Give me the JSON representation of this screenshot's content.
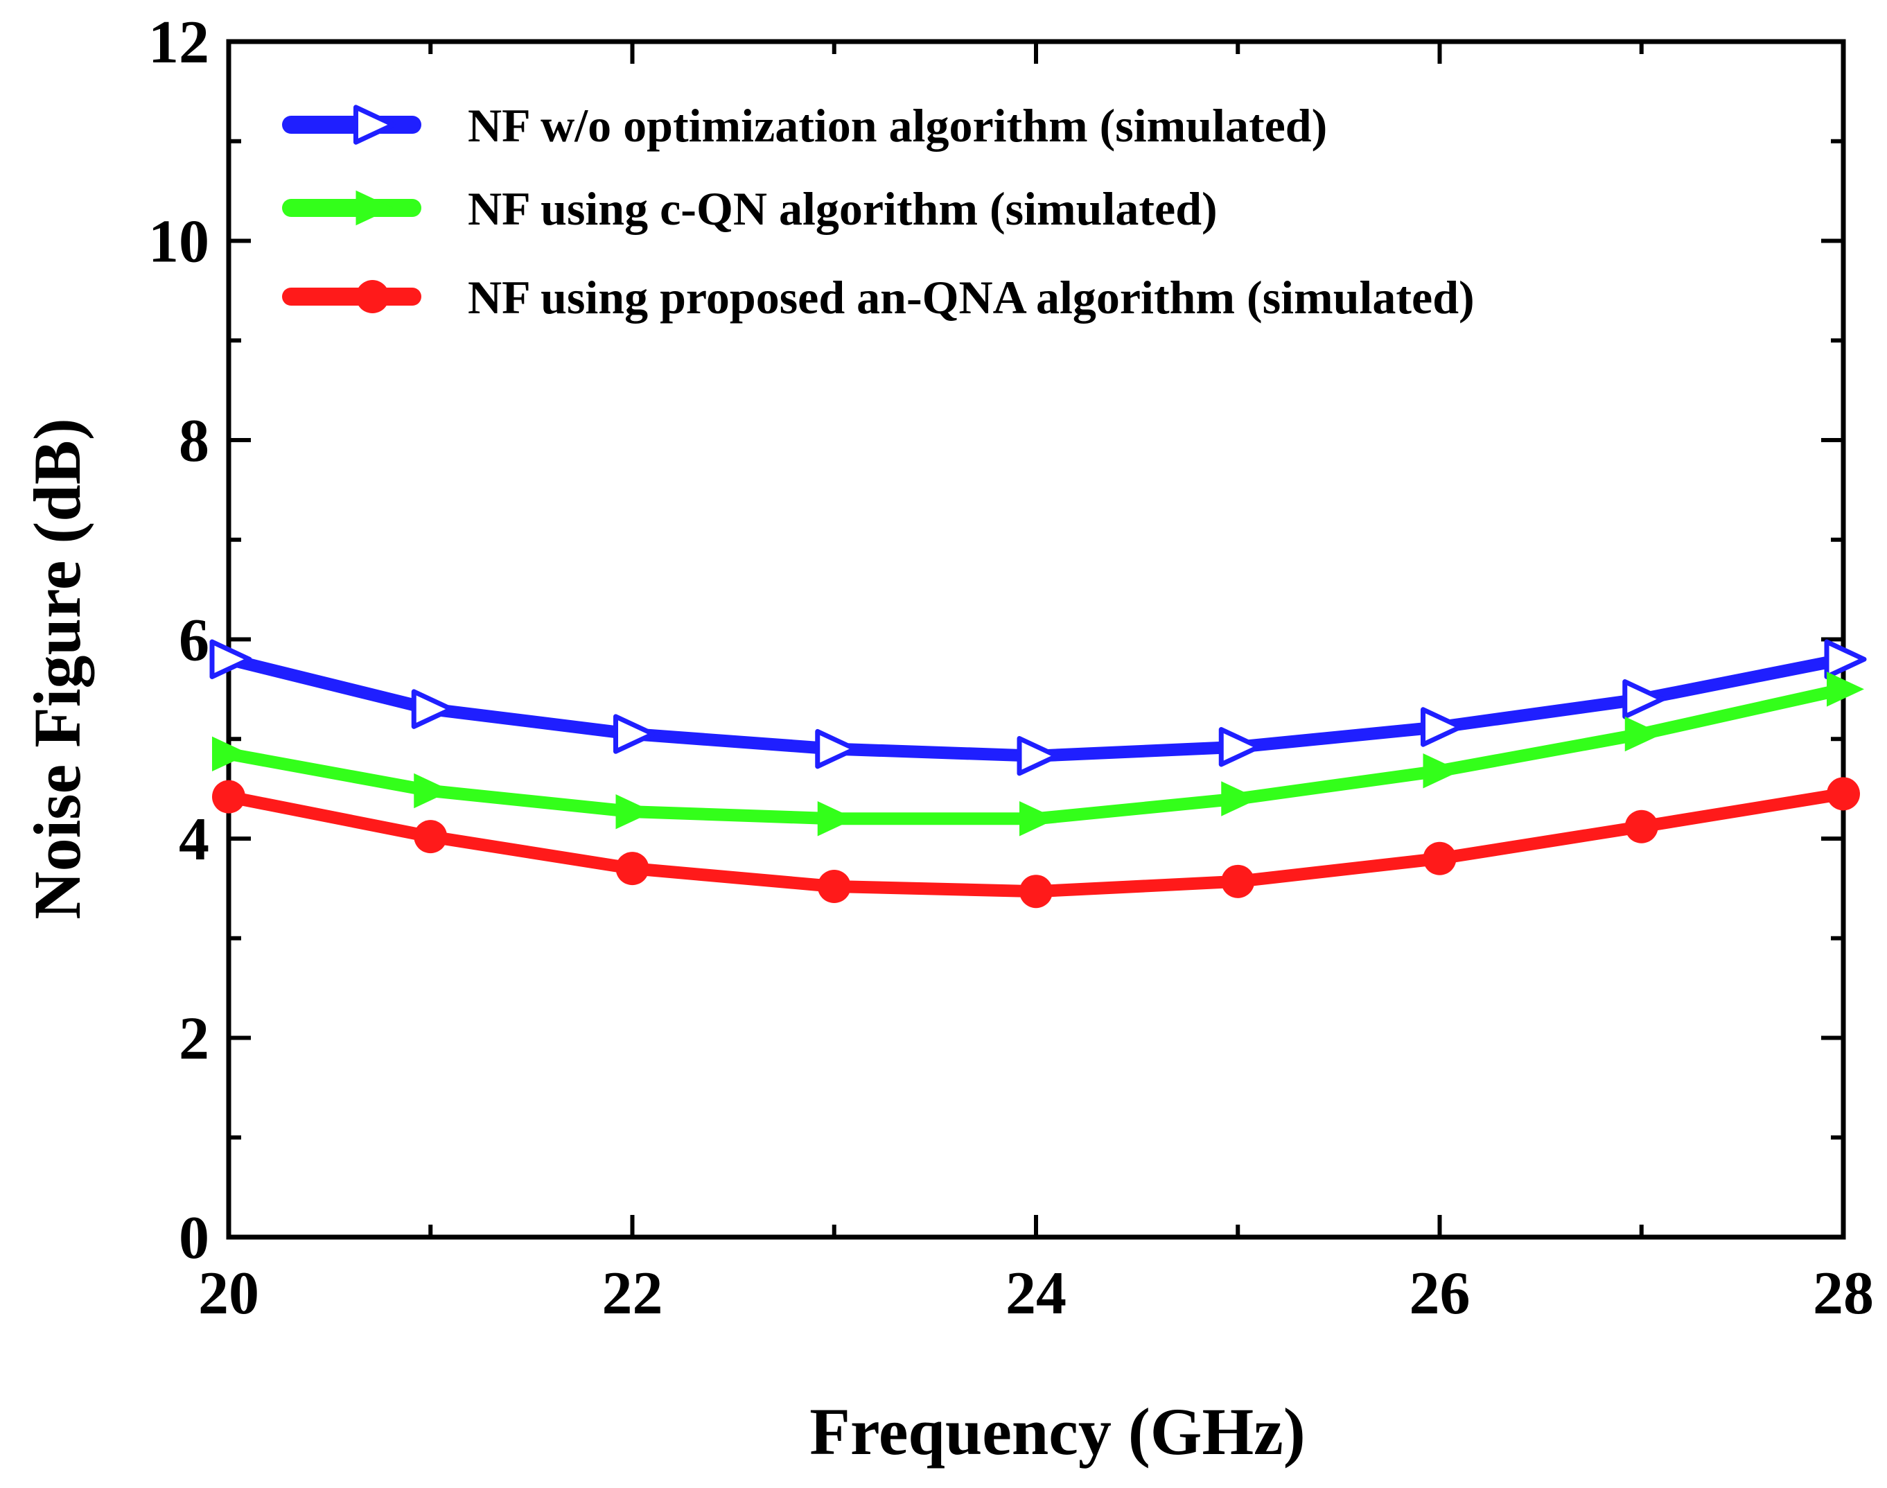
{
  "chart_data": {
    "type": "line",
    "xlabel": "Frequency (GHz)",
    "ylabel": "Noise Figure  (dB)",
    "xlim": [
      20,
      28
    ],
    "ylim": [
      0,
      12
    ],
    "xticks": [
      20,
      22,
      24,
      26,
      28
    ],
    "yticks": [
      0,
      2,
      4,
      6,
      8,
      10,
      12
    ],
    "x_minor_step": 1,
    "y_minor_step": 1,
    "grid": false,
    "legend_position": "top-left",
    "series": [
      {
        "name": "NF w/o optimization algorithm (simulated)",
        "color": "#1f1fff",
        "marker": "open-right-triangle",
        "x": [
          20,
          21,
          22,
          23,
          24,
          25,
          26,
          27,
          28
        ],
        "y": [
          5.8,
          5.3,
          5.05,
          4.9,
          4.83,
          4.92,
          5.12,
          5.4,
          5.8
        ]
      },
      {
        "name": "NF using c-QN algorithm (simulated)",
        "color": "#33ff1a",
        "marker": "filled-right-triangle",
        "x": [
          20,
          21,
          22,
          23,
          24,
          25,
          26,
          27,
          28
        ],
        "y": [
          4.85,
          4.48,
          4.27,
          4.2,
          4.2,
          4.4,
          4.68,
          5.05,
          5.5
        ]
      },
      {
        "name": "NF using proposed an-QNA algorithm (simulated)",
        "color": "#ff1a1a",
        "marker": "filled-circle",
        "x": [
          20,
          21,
          22,
          23,
          24,
          25,
          26,
          27,
          28
        ],
        "y": [
          4.42,
          4.02,
          3.7,
          3.52,
          3.47,
          3.57,
          3.8,
          4.12,
          4.45
        ]
      }
    ]
  }
}
